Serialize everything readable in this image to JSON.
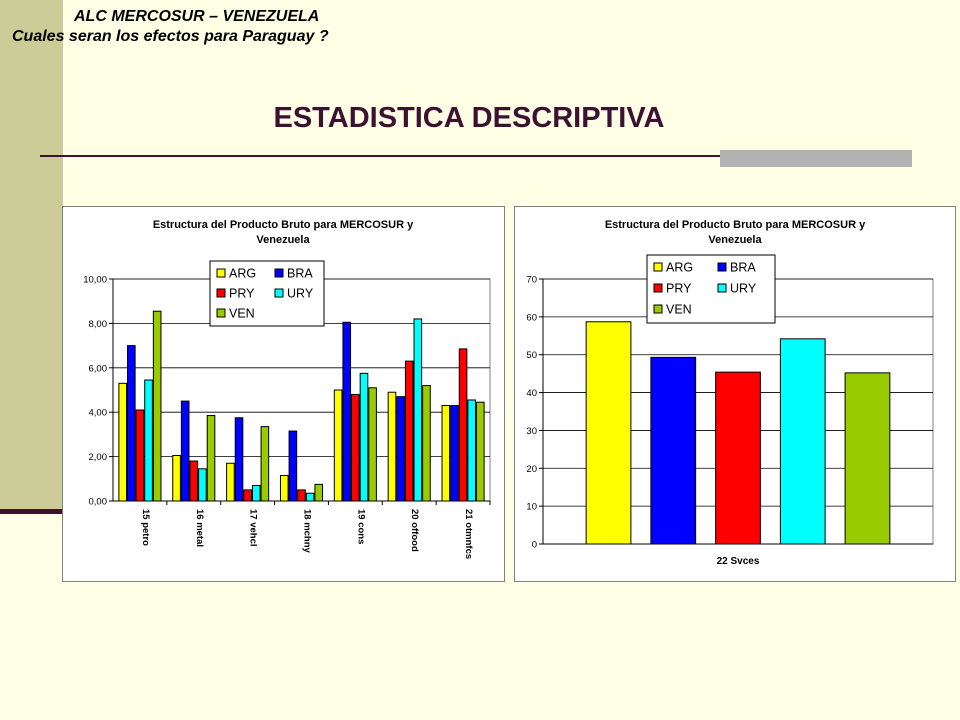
{
  "header": {
    "line1": "ALC MERCOSUR – VENEZUELA",
    "line2": "Cuales seran los efectos para  Paraguay ?"
  },
  "slide_title": "ESTADISTICA DESCRIPTIVA",
  "colors": {
    "background": "#FFFFE5",
    "sidebar": "#CCCC99",
    "title": "#3D1131",
    "rule": "#3D1131",
    "accent_bar": "#B2B2B2"
  },
  "chart_data": [
    {
      "type": "bar",
      "title": "Estructura del Producto Bruto para MERCOSUR y Venezuela",
      "title_lines": [
        "Estructura del Producto Bruto para MERCOSUR y",
        "Venezuela"
      ],
      "categories": [
        "15 petro",
        "16 metal",
        "17 vehcl",
        "18 mchny",
        "19 cons",
        "20 offood",
        "21 otmnfcs"
      ],
      "ylim": [
        0,
        10
      ],
      "yticks": [
        0,
        2,
        4,
        6,
        8,
        10
      ],
      "ytick_labels": [
        "0,00",
        "2,00",
        "4,00",
        "6,00",
        "8,00",
        "10,00"
      ],
      "grid": true,
      "legend_position": "top-right",
      "series": [
        {
          "name": "ARG",
          "color": "#FFFF00",
          "values": [
            5.3,
            2.05,
            1.7,
            1.15,
            5.0,
            4.9,
            4.3
          ]
        },
        {
          "name": "BRA",
          "color": "#0000FF",
          "values": [
            7.0,
            4.5,
            3.75,
            3.15,
            8.05,
            4.7,
            4.3
          ]
        },
        {
          "name": "PRY",
          "color": "#FF0000",
          "values": [
            4.1,
            1.8,
            0.5,
            0.5,
            4.8,
            6.3,
            6.85
          ]
        },
        {
          "name": "URY",
          "color": "#00FFFF",
          "values": [
            5.45,
            1.45,
            0.7,
            0.35,
            5.75,
            8.2,
            4.55
          ]
        },
        {
          "name": "VEN",
          "color": "#99CC00",
          "values": [
            8.55,
            3.85,
            3.35,
            0.75,
            5.1,
            5.2,
            4.45
          ]
        }
      ]
    },
    {
      "type": "bar",
      "title": "Estructura del Producto Bruto para MERCOSUR y Venezuela",
      "title_lines": [
        "Estructura del Producto Bruto para MERCOSUR y",
        "Venezuela"
      ],
      "categories": [
        "22 Svces"
      ],
      "ylim": [
        0,
        70
      ],
      "yticks": [
        0,
        10,
        20,
        30,
        40,
        50,
        60,
        70
      ],
      "ytick_labels": [
        "0",
        "10",
        "20",
        "30",
        "40",
        "50",
        "60",
        "70"
      ],
      "grid": true,
      "legend_position": "top",
      "series": [
        {
          "name": "ARG",
          "color": "#FFFF00",
          "values": [
            58.7
          ]
        },
        {
          "name": "BRA",
          "color": "#0000FF",
          "values": [
            49.3
          ]
        },
        {
          "name": "PRY",
          "color": "#FF0000",
          "values": [
            45.4
          ]
        },
        {
          "name": "URY",
          "color": "#00FFFF",
          "values": [
            54.2
          ]
        },
        {
          "name": "VEN",
          "color": "#99CC00",
          "values": [
            45.2
          ]
        }
      ]
    }
  ]
}
